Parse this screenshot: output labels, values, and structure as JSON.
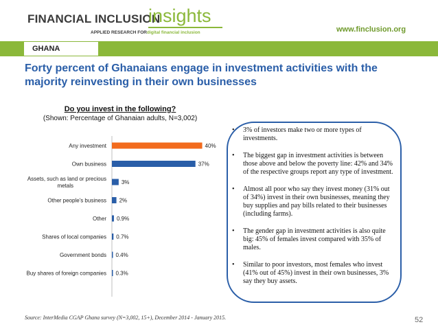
{
  "header": {
    "logo_main": "FINANCIAL INCLUSION",
    "logo_insights": "insights",
    "logo_sub_a": "APPLIED RESEARCH FOR",
    "logo_sub_b": "digital financial inclusion",
    "url": "www.finclusion.org"
  },
  "country": "GHANA",
  "title": "Forty percent of Ghanaians engage in investment activities with the majority reinvesting in their own businesses",
  "chart_data": {
    "type": "bar",
    "orientation": "horizontal",
    "title": "Do you invest in the following?",
    "subtitle": "(Shown: Percentage of Ghanaian adults, N=3,002)",
    "categories": [
      "Any investment",
      "Own business",
      "Assets, such as land or precious metals",
      "Other people's business",
      "Other",
      "Shares of local companies",
      "Government bonds",
      "Buy shares of foreign companies"
    ],
    "values": [
      40,
      37,
      3,
      2,
      0.9,
      0.7,
      0.4,
      0.3
    ],
    "labels": [
      "40%",
      "37%",
      "3%",
      "2%",
      "0.9%",
      "0.7%",
      "0.4%",
      "0.3%"
    ],
    "bar_colors": [
      "#f26b1d",
      "#2a5ea8",
      "#2a5ea8",
      "#2a5ea8",
      "#2a5ea8",
      "#2a5ea8",
      "#2a5ea8",
      "#2a5ea8"
    ],
    "xlim": [
      0,
      45
    ],
    "grid": false,
    "legend": "none"
  },
  "bullets": [
    "3% of investors make two or more types of investments.",
    "The biggest gap in investment activities is between those above and below the poverty line: 42% and 34% of the respective groups report any type of investment.",
    "Almost all poor who say they invest money (31% out of 34%) invest in their own businesses, meaning they buy supplies and pay bills related to their businesses (including farms).",
    "The gender gap in investment activities is also quite big: 45% of females invest compared with 35% of males.",
    "Similar to poor investors, most females who invest (41% out of 45%) invest in their own businesses, 3% say they buy assets."
  ],
  "bullet_glyph": "•",
  "source": "Source: InterMedia CGAP Ghana survey (N=3,002, 15+), December 2014 - January 2015.",
  "page_number": "52",
  "colors": {
    "accent_green": "#8bb83a",
    "title_blue": "#2a5ea8",
    "highlight_orange": "#f26b1d"
  }
}
